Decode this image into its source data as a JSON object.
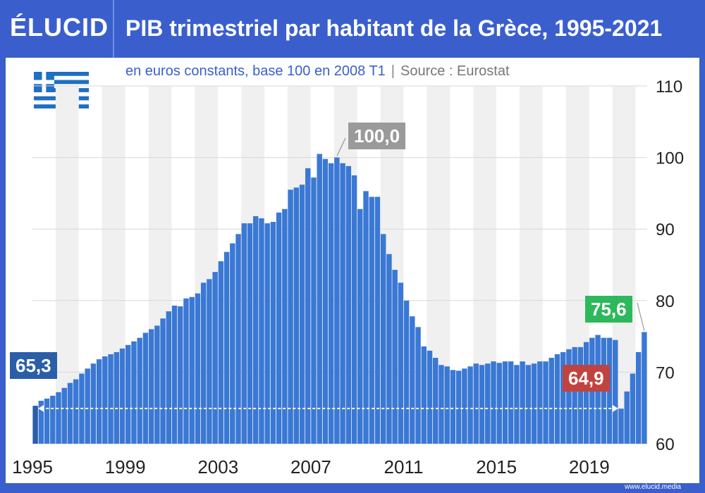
{
  "header": {
    "logo": "ÉLUCID",
    "title": "PIB trimestriel par habitant de la Grèce, 1995-2021"
  },
  "subtitle": {
    "main": "en euros constants, base 100 en 2008 T1",
    "separator": "|",
    "source": "Source : Eurostat"
  },
  "footer": {
    "url": "www.elucid.media"
  },
  "colors": {
    "bar": "#3a78d4",
    "highlight_start": "#2a5ea8",
    "grid_band": "#f0f0f0",
    "accent_green": "#2eb85c",
    "accent_red": "#c0433f",
    "accent_grey": "#9a9a9a",
    "brand": "#3a5fcd"
  },
  "callouts": {
    "start": "65,3",
    "peak": "100,0",
    "low": "64,9",
    "end": "75,6"
  },
  "chart_data": {
    "type": "bar",
    "title": "PIB trimestriel par habitant de la Grèce, 1995-2021",
    "ylim": [
      60,
      110
    ],
    "yticks": [
      60,
      70,
      80,
      90,
      100,
      110
    ],
    "xticks": [
      "1995",
      "1999",
      "2003",
      "2007",
      "2011",
      "2015",
      "2019"
    ],
    "grid": true,
    "start_period": "1995 T1",
    "values": [
      65.3,
      66.0,
      66.3,
      66.7,
      67.2,
      67.8,
      68.5,
      69.0,
      69.8,
      70.5,
      71.2,
      71.8,
      72.2,
      72.5,
      72.8,
      73.3,
      73.8,
      74.3,
      74.8,
      75.5,
      76.0,
      76.5,
      77.5,
      78.5,
      79.3,
      79.2,
      80.3,
      80.5,
      81.0,
      82.5,
      83.0,
      84.0,
      85.5,
      86.8,
      88.0,
      89.3,
      90.8,
      90.8,
      91.8,
      91.5,
      90.8,
      91.0,
      92.3,
      92.8,
      95.5,
      95.8,
      96.2,
      98.5,
      97.2,
      100.5,
      99.8,
      99.2,
      100.0,
      99.2,
      98.8,
      97.5,
      92.8,
      95.3,
      94.5,
      94.5,
      89.3,
      86.5,
      84.3,
      82.5,
      80.0,
      77.8,
      76.3,
      73.6,
      73.0,
      72.0,
      71.0,
      70.8,
      70.3,
      70.2,
      70.5,
      70.8,
      71.2,
      71.0,
      71.2,
      71.5,
      71.3,
      71.5,
      71.5,
      71.0,
      71.5,
      71.0,
      71.2,
      71.5,
      71.5,
      72.0,
      72.5,
      72.8,
      73.2,
      73.5,
      73.5,
      74.2,
      74.8,
      75.2,
      74.8,
      74.8,
      74.5,
      64.9,
      67.3,
      69.8,
      72.8,
      75.6
    ],
    "annotations": [
      {
        "label": "65,3",
        "period": "1995 T1",
        "value": 65.3
      },
      {
        "label": "100,0",
        "period": "2008 T1",
        "value": 100.0
      },
      {
        "label": "64,9",
        "period": "2020 T2",
        "value": 64.9
      },
      {
        "label": "75,6",
        "period": "2021 T2",
        "value": 75.6
      }
    ]
  }
}
